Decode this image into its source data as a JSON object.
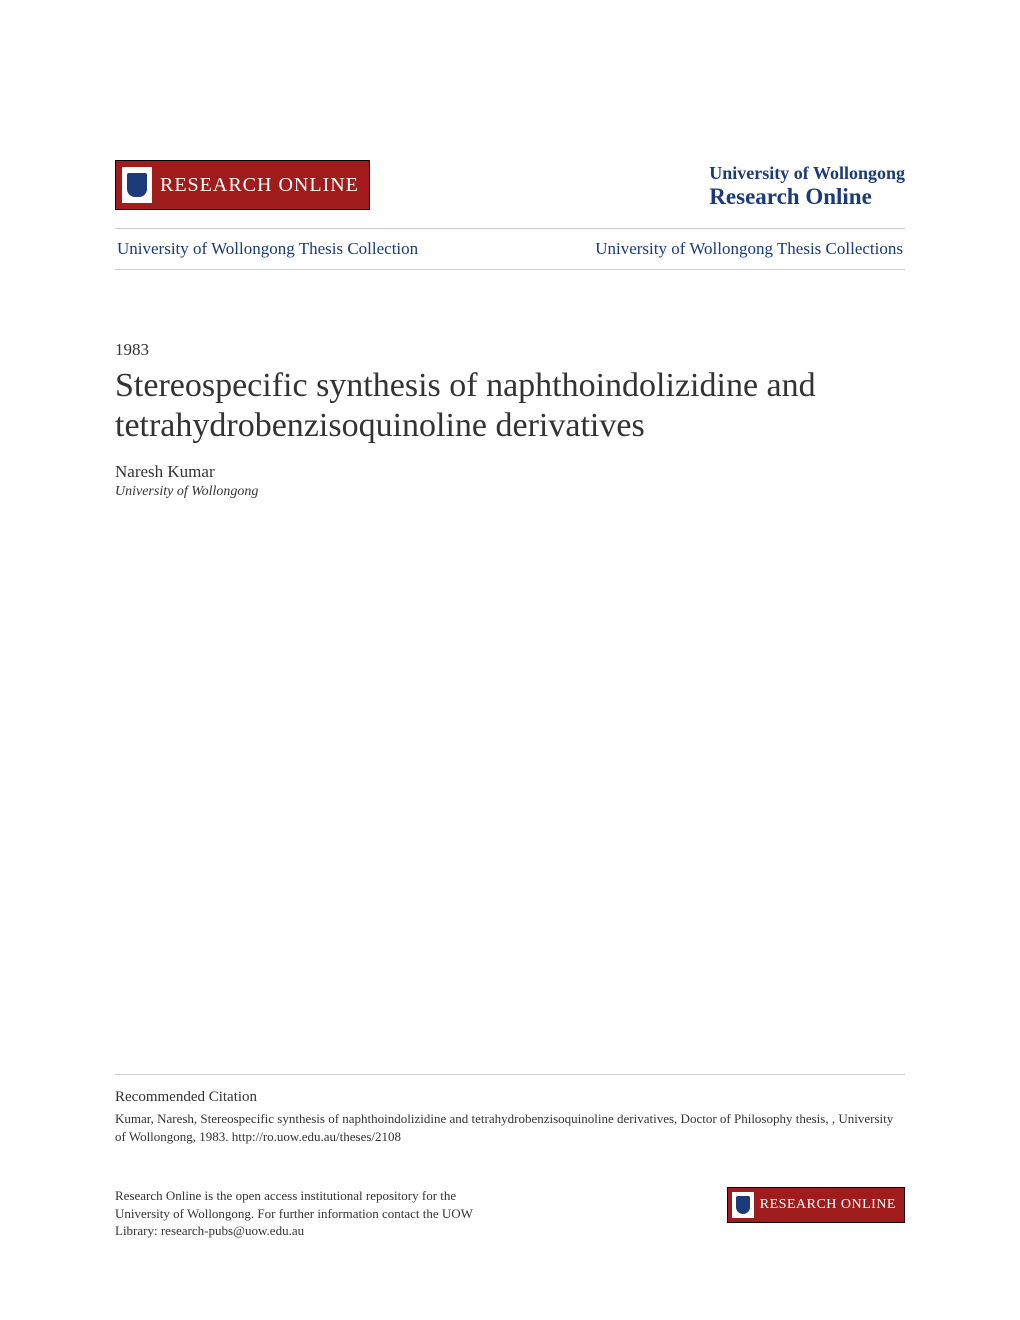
{
  "header": {
    "logo_text": "RESEARCH ONLINE",
    "university_name": "University of Wollongong",
    "portal_name": "Research Online",
    "logo_bg_color": "#a01c1c",
    "text_color": "#1a3a7a"
  },
  "breadcrumb": {
    "left": "University of Wollongong Thesis Collection",
    "right": "University of Wollongong Thesis Collections"
  },
  "document": {
    "year": "1983",
    "title": "Stereospecific synthesis of naphthoindolizidine and tetrahydrobenzisoquinoline derivatives",
    "author_name": "Naresh Kumar",
    "author_affiliation": "University of Wollongong"
  },
  "citation": {
    "heading": "Recommended Citation",
    "text": "Kumar, Naresh, Stereospecific synthesis of naphthoindolizidine and tetrahydrobenzisoquinoline derivatives, Doctor of Philosophy thesis, , University of Wollongong, 1983. http://ro.uow.edu.au/theses/2108"
  },
  "footer": {
    "repo_text": "Research Online is the open access institutional repository for the University of Wollongong. For further information contact the UOW Library: research-pubs@uow.edu.au",
    "logo_text": "RESEARCH ONLINE"
  },
  "styling": {
    "page_bg": "#ffffff",
    "text_color": "#333333",
    "link_color": "#1a3a7a",
    "divider_color": "#cccccc",
    "title_fontsize": 34,
    "body_fontsize": 17,
    "small_fontsize": 13,
    "font_family": "Georgia, serif"
  }
}
